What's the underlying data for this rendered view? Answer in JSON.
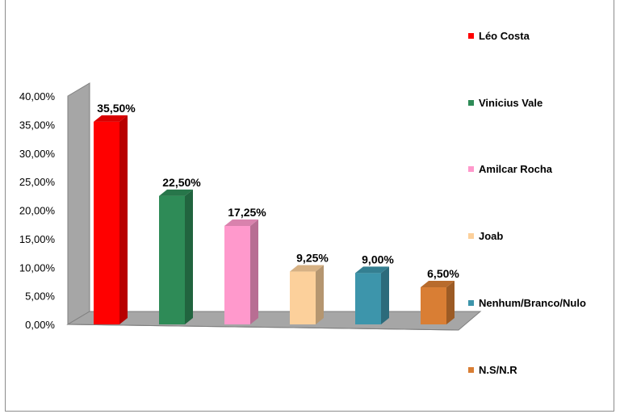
{
  "chart_data": {
    "type": "bar",
    "categories": [
      "Léo Costa",
      "Vinicius Vale",
      "Amilcar Rocha",
      "Joab",
      "Nenhum/Branco/Nulo",
      "N.S/N.R"
    ],
    "values": [
      35.5,
      22.5,
      17.25,
      9.25,
      9.0,
      6.5
    ],
    "data_labels": [
      "35,50%",
      "22,50%",
      "17,25%",
      "9,25%",
      "9,00%",
      "6,50%"
    ],
    "colors": [
      "#ff0000",
      "#2e8b57",
      "#ff99cc",
      "#fcd09b",
      "#3d95ab",
      "#d97e34"
    ],
    "y_ticks": [
      "0,00%",
      "5,00%",
      "10,00%",
      "15,00%",
      "20,00%",
      "25,00%",
      "30,00%",
      "35,00%",
      "40,00%"
    ],
    "ylim": [
      0,
      40
    ],
    "legend_position": "right",
    "grid": false,
    "style": "3d-column"
  }
}
